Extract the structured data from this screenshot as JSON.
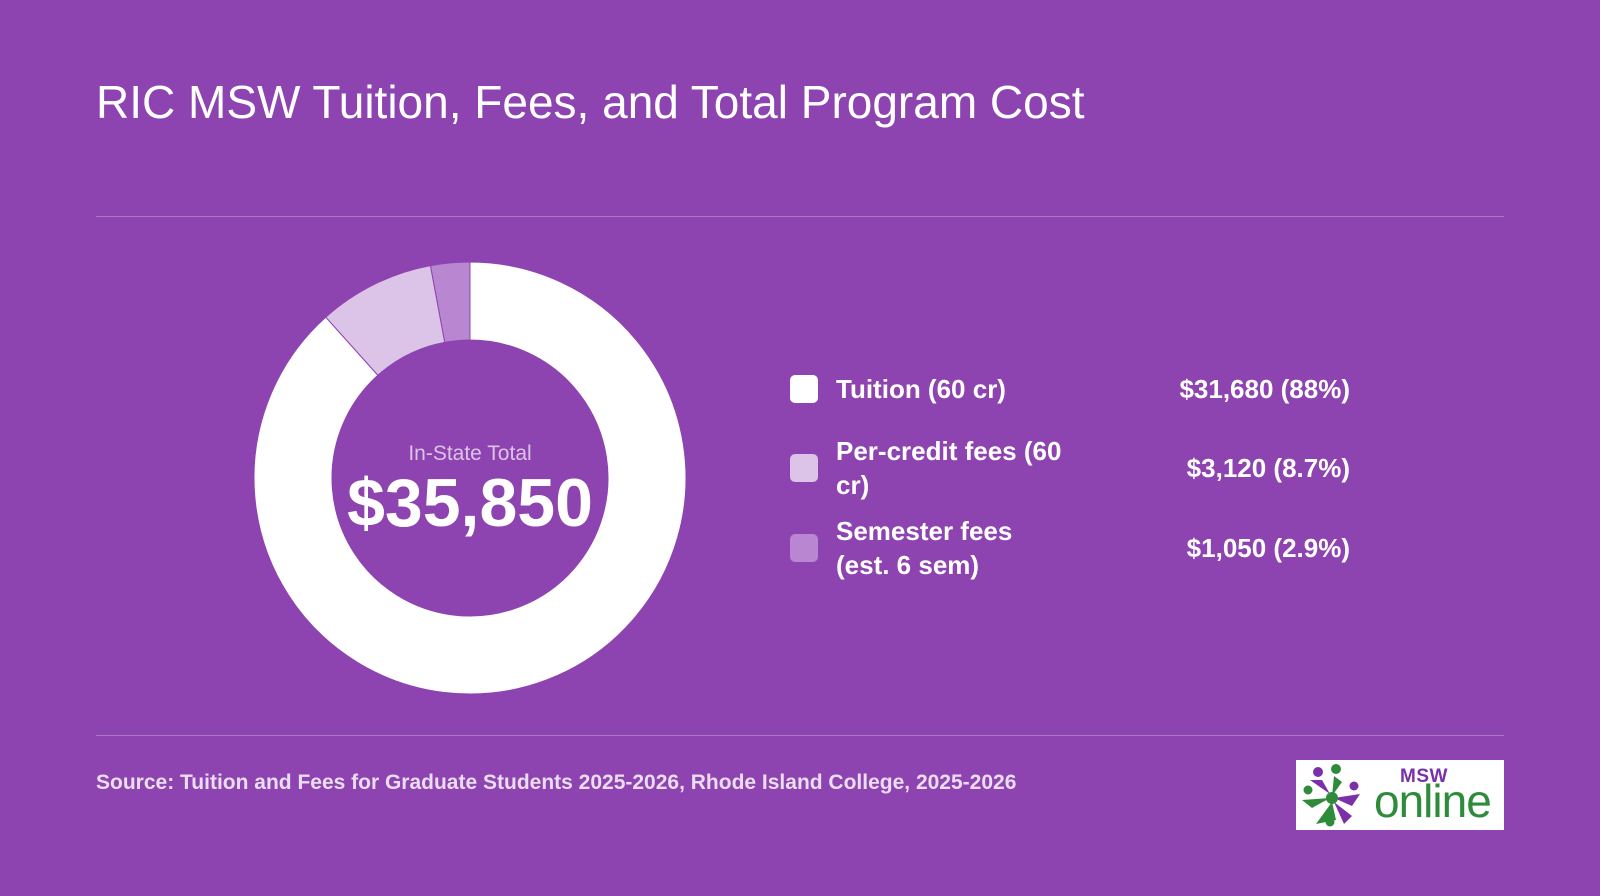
{
  "title": "RIC MSW Tuition, Fees, and Total Program Cost",
  "center": {
    "label": "In-State Total",
    "value": "$35,850"
  },
  "chart_data": {
    "type": "pie",
    "donut": true,
    "title": "RIC MSW Tuition, Fees, and Total Program Cost",
    "total": 35850,
    "legend_position": "right",
    "slices": [
      {
        "label": "Tuition (60 cr)",
        "value": 31680,
        "percent": 88,
        "display": "$31,680 (88%)",
        "color": "#ffffff"
      },
      {
        "label": "Per-credit fees (60 cr)",
        "value": 3120,
        "percent": 8.7,
        "display": "$3,120 (8.7%)",
        "color": "#dcc4e8"
      },
      {
        "label": "Semester fees (est. 6 sem)",
        "value": 1050,
        "percent": 2.9,
        "display": "$1,050 (2.9%)",
        "color": "#b986d2"
      }
    ]
  },
  "source": "Source: Tuition and Fees for Graduate Students 2025-2026, Rhode Island College, 2025-2026",
  "logo": {
    "msw": "MSW",
    "online": "online",
    "icon": "star-people-logo-icon"
  },
  "colors": {
    "background": "#8e44b0",
    "text": "#ffffff",
    "logo_purple": "#7b2fa8",
    "logo_green": "#2e8b3a"
  }
}
